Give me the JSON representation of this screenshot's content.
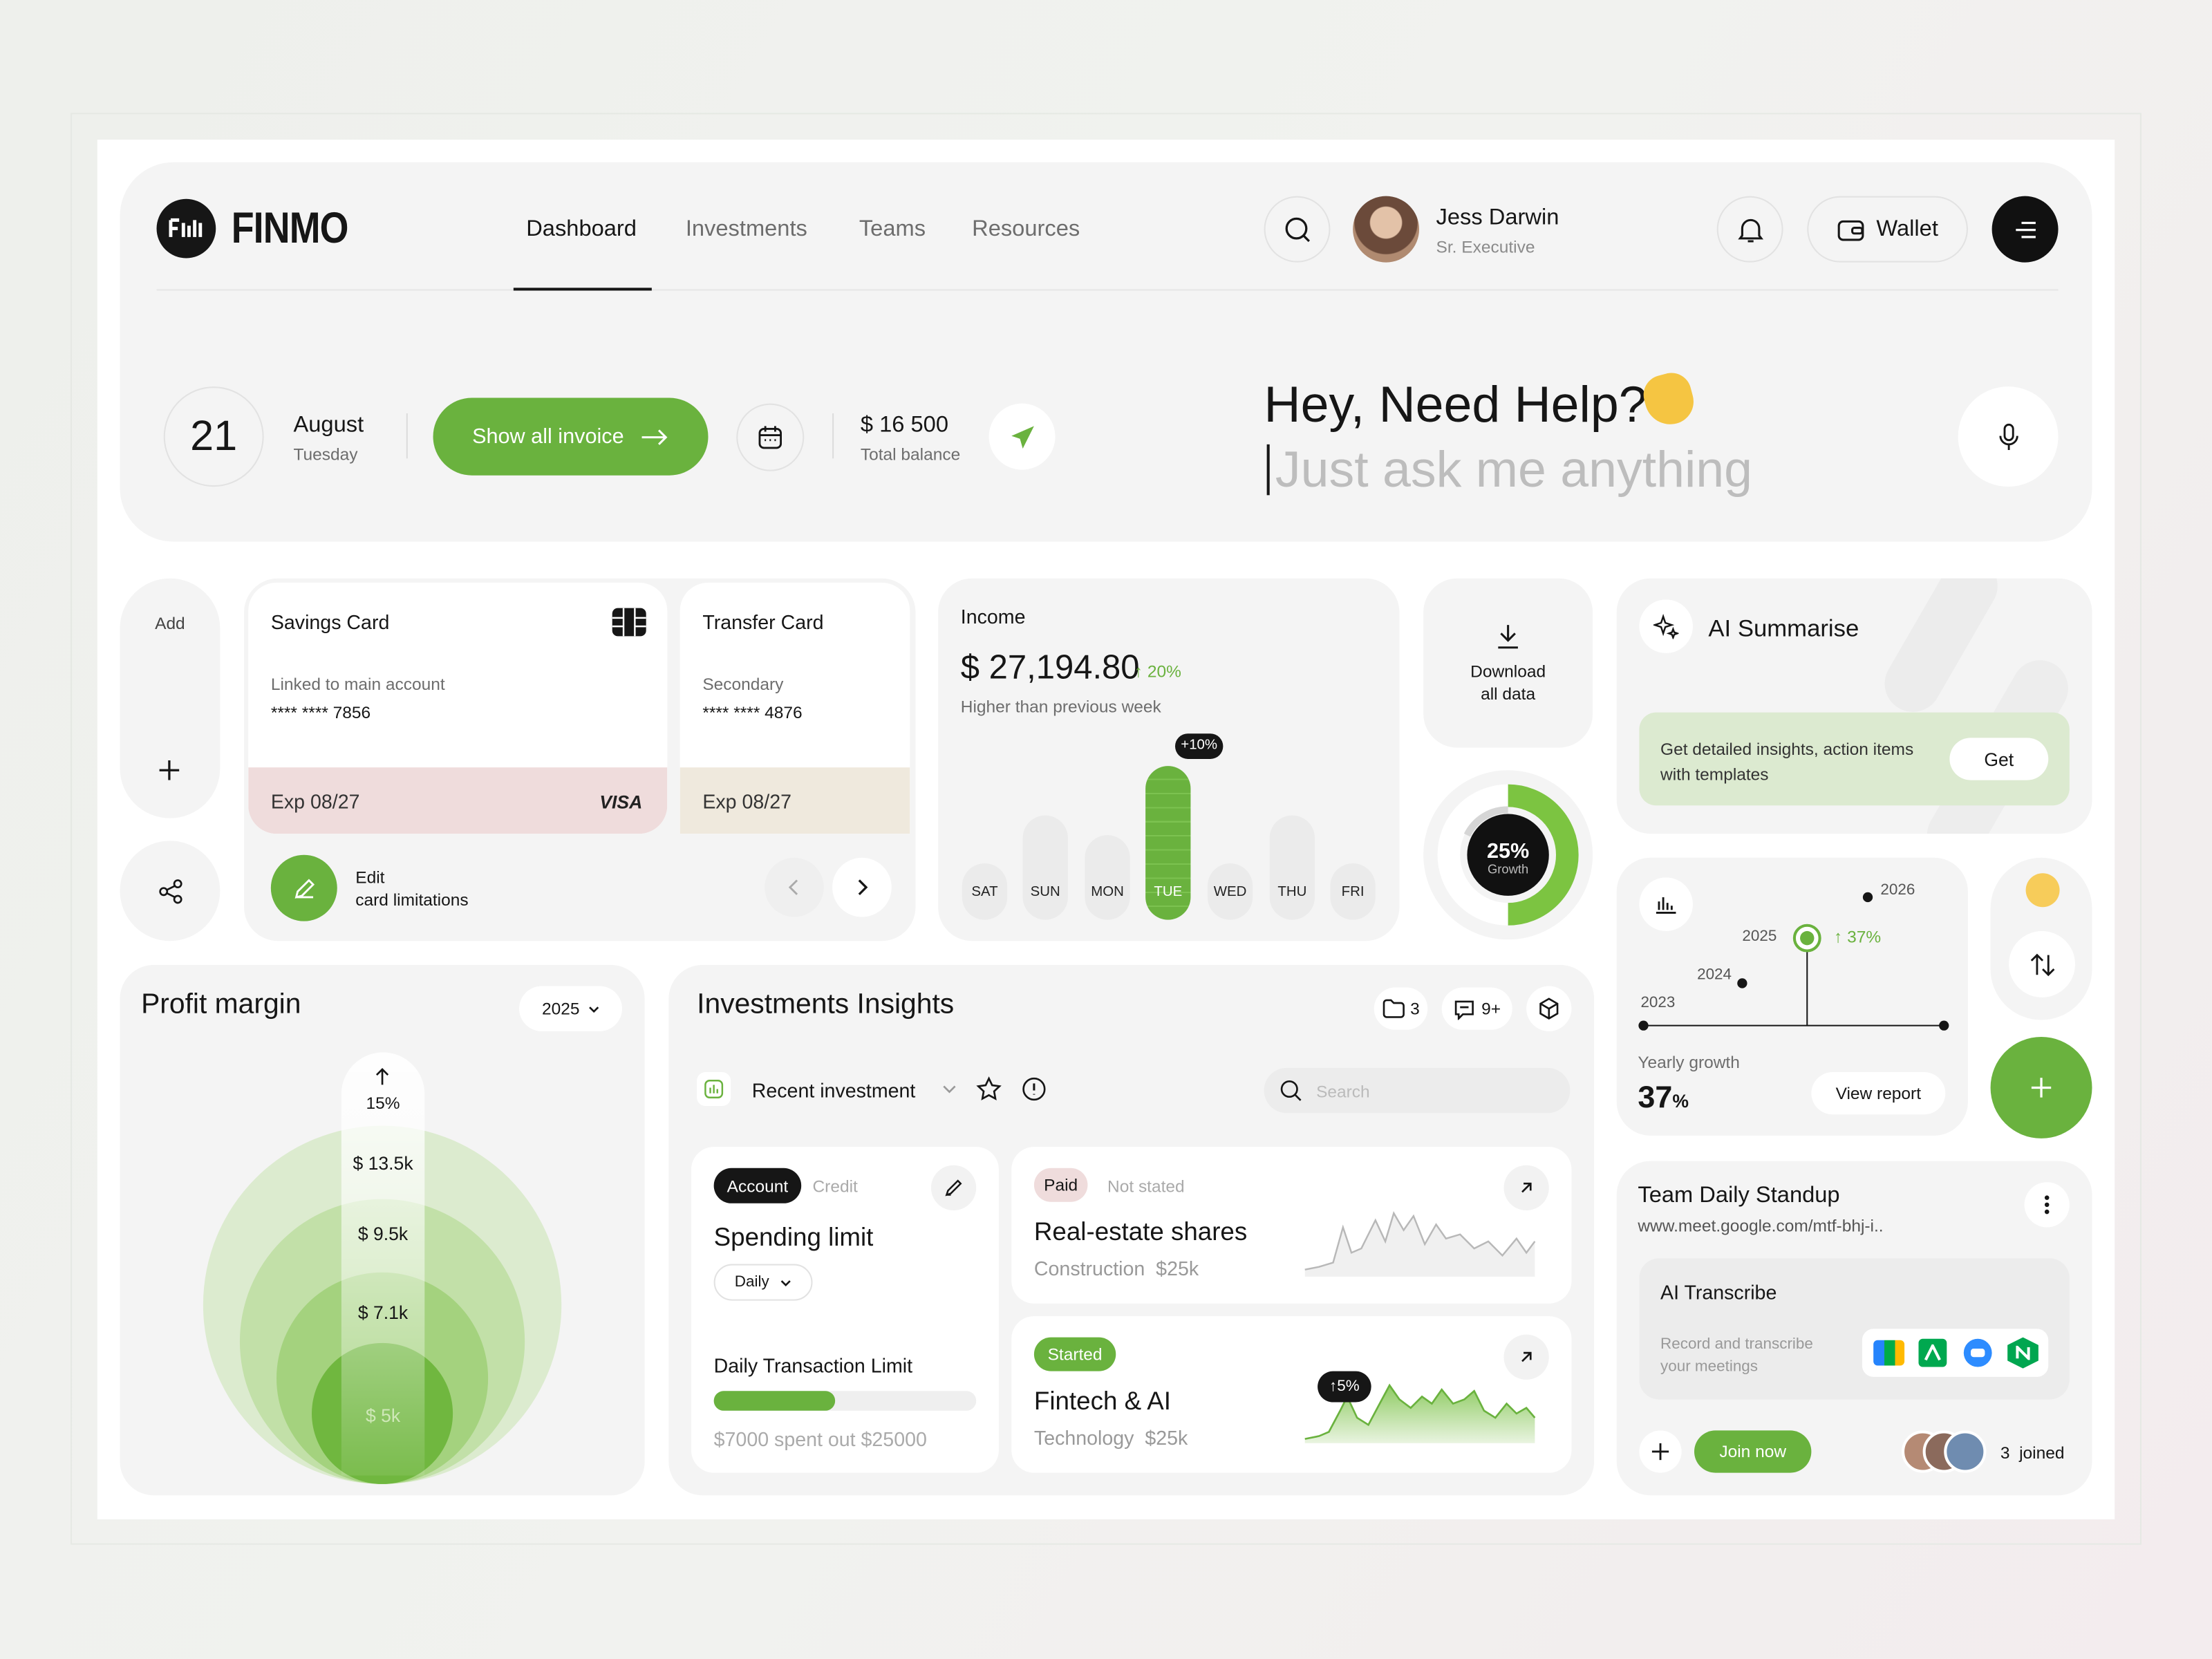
{
  "header": {
    "brand": "FINMO",
    "nav": [
      "Dashboard",
      "Investments",
      "Teams",
      "Resources"
    ],
    "user_name": "Jess Darwin",
    "user_role": "Sr. Executive",
    "wallet": "Wallet"
  },
  "hero": {
    "day": "21",
    "month": "August",
    "weekday": "Tuesday",
    "invoice_button": "Show all invoice",
    "balance": "$ 16 500",
    "balance_label": "Total balance",
    "help_title": "Hey, Need Help?",
    "help_placeholder": "Just ask me anything"
  },
  "cards": {
    "add": "Add",
    "savings": {
      "title": "Savings Card",
      "subtitle": "Linked to main account",
      "number": "**** **** 7856",
      "exp": "Exp 08/27",
      "brand": "VISA"
    },
    "transfer": {
      "title": "Transfer Card",
      "subtitle": "Secondary",
      "number": "**** **** 4876",
      "exp": "Exp 08/27"
    },
    "edit": [
      "Edit",
      "card limitations"
    ]
  },
  "income": {
    "title": "Income",
    "amount": "$ 27,194.80",
    "change": "20%",
    "note": "Higher than previous week",
    "badge": "+10%",
    "days": [
      "SAT",
      "SUN",
      "MON",
      "TUE",
      "WED",
      "THU",
      "FRI"
    ]
  },
  "download": [
    "Download",
    "all data"
  ],
  "growth_ring": {
    "label": "25%",
    "caption": "Growth"
  },
  "ai_summarise": {
    "title": "AI Summarise",
    "text": "Get detailed insights, action items with templates",
    "button": "Get"
  },
  "yearly": {
    "years": [
      "2023",
      "2024",
      "2025",
      "2026"
    ],
    "point_label": "37%",
    "caption": "Yearly growth",
    "value": "37",
    "unit": "%",
    "button": "View report"
  },
  "profit": {
    "title": "Profit margin",
    "year": "2025",
    "top": "15%",
    "rings": [
      "$ 13.5k",
      "$ 9.5k",
      "$ 7.1k",
      "$ 5k"
    ]
  },
  "investments": {
    "title": "Investments Insights",
    "files": "3",
    "comments": "9+",
    "filter": "Recent investment",
    "search": "Search",
    "spending": {
      "tabs": [
        "Account",
        "Credit"
      ],
      "title": "Spending limit",
      "period": "Daily",
      "limit_title": "Daily Transaction Limit",
      "limit_text": "$7000 spent out $25000"
    },
    "realestate": {
      "tags": [
        "Paid",
        "Not stated"
      ],
      "title": "Real-estate shares",
      "sub": "Construction  $25k"
    },
    "fintech": {
      "tag": "Started",
      "title": "Fintech & AI",
      "sub": "Technology  $25k",
      "badge": "5%"
    }
  },
  "standup": {
    "title": "Team Daily Standup",
    "url": "www.meet.google.com/mtf-bhj-i..",
    "transcribe_title": "AI Transcribe",
    "transcribe_text": "Record and transcribe your meetings",
    "join": "Join now",
    "joined": "3  joined"
  }
}
